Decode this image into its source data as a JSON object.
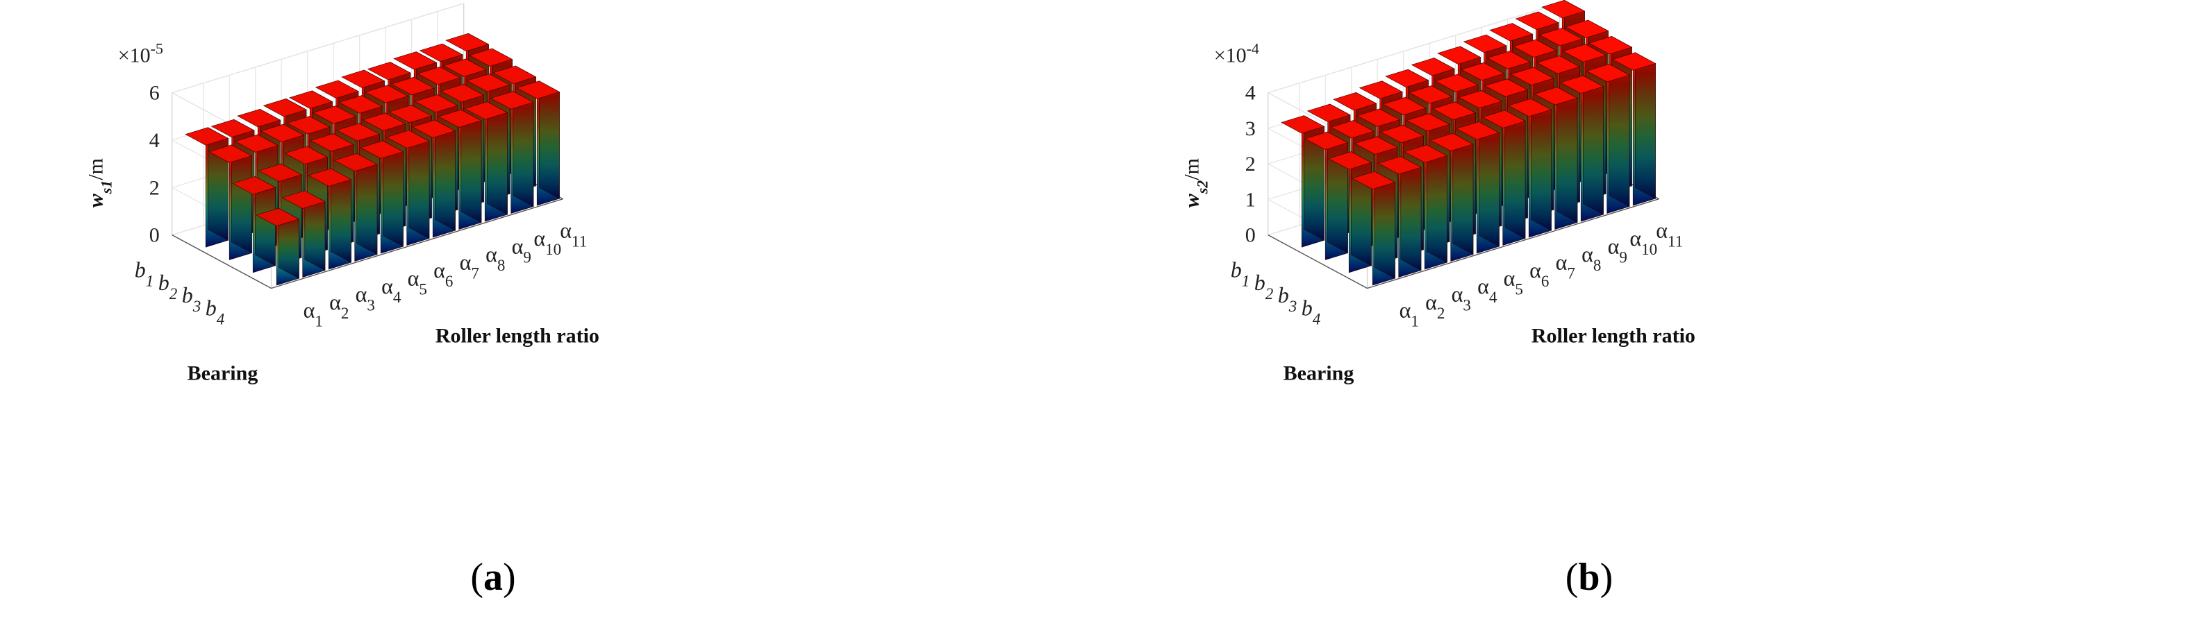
{
  "chart_data": [
    {
      "type": "bar3d",
      "panel_label": "(a)",
      "panel_letter": "a",
      "zlabel_base": "w",
      "zlabel_sub": "s1",
      "zlabel_unit": "/m",
      "xlabel": "Roller length ratio",
      "ylabel": "Bearing",
      "exponent_base": "×10",
      "exponent": "-5",
      "zticks": [
        "0",
        "2",
        "4",
        "6"
      ],
      "zlim": [
        0,
        6
      ],
      "x_categories": [
        "α1",
        "α2",
        "α3",
        "α4",
        "α5",
        "α6",
        "α7",
        "α8",
        "α9",
        "α10",
        "α11"
      ],
      "y_categories": [
        "b1",
        "b2",
        "b3",
        "b4"
      ],
      "values": [
        [
          4.3,
          4.3,
          4.4,
          4.5,
          4.5,
          4.6,
          4.7,
          4.7,
          4.8,
          4.8,
          4.9
        ],
        [
          4.1,
          4.2,
          4.3,
          4.3,
          4.4,
          4.5,
          4.6,
          4.6,
          4.7,
          4.7,
          4.8
        ],
        [
          3.3,
          3.5,
          3.9,
          4.1,
          4.2,
          4.3,
          4.3,
          4.4,
          4.5,
          4.6,
          4.6
        ],
        [
          2.5,
          2.9,
          3.5,
          3.8,
          4.0,
          4.1,
          4.2,
          4.3,
          4.3,
          4.4,
          4.5
        ]
      ],
      "colormap": [
        "#000a5a",
        "#004a7a",
        "#0e7a7a",
        "#2e8a4a",
        "#6a7a20",
        "#8a4a10",
        "#c01000",
        "#ff1500"
      ]
    },
    {
      "type": "bar3d",
      "panel_label": "(b)",
      "panel_letter": "b",
      "zlabel_base": "w",
      "zlabel_sub": "s2",
      "zlabel_unit": "/m",
      "xlabel": "Roller length ratio",
      "ylabel": "Bearing",
      "exponent_base": "×10",
      "exponent": "-4",
      "zticks": [
        "0",
        "1",
        "2",
        "3",
        "4"
      ],
      "zlim": [
        0,
        4
      ],
      "x_categories": [
        "α1",
        "α2",
        "α3",
        "α4",
        "α5",
        "α6",
        "α7",
        "α8",
        "α9",
        "α10",
        "α11"
      ],
      "y_categories": [
        "b1",
        "b2",
        "b3",
        "b4"
      ],
      "values": [
        [
          3.2,
          3.3,
          3.4,
          3.5,
          3.6,
          3.7,
          3.8,
          3.9,
          4.0,
          4.1,
          4.2
        ],
        [
          3.1,
          3.2,
          3.3,
          3.4,
          3.5,
          3.6,
          3.7,
          3.8,
          3.9,
          4.0,
          4.0
        ],
        [
          2.9,
          3.1,
          3.2,
          3.3,
          3.4,
          3.5,
          3.6,
          3.7,
          3.8,
          3.9,
          3.9
        ],
        [
          2.7,
          2.9,
          3.0,
          3.1,
          3.2,
          3.3,
          3.4,
          3.5,
          3.6,
          3.7,
          3.8
        ]
      ],
      "colormap": [
        "#000a5a",
        "#004a7a",
        "#0e7a7a",
        "#2e8a4a",
        "#6a7a20",
        "#8a4a10",
        "#c01000",
        "#ff1500"
      ]
    }
  ]
}
